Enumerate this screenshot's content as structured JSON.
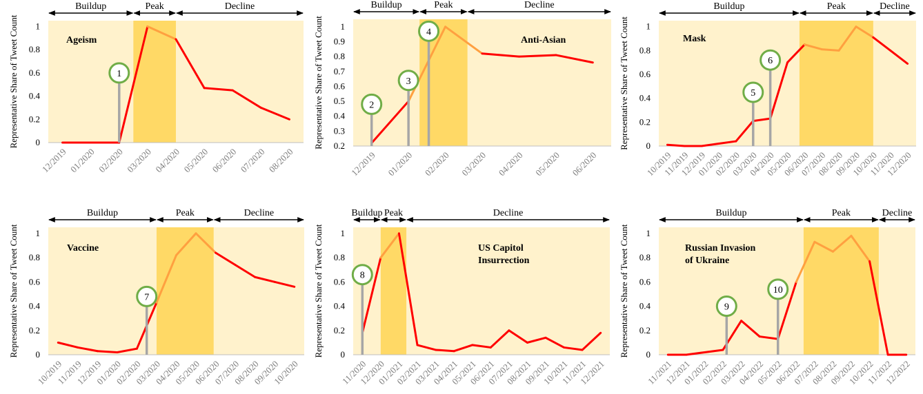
{
  "colors": {
    "plot_bg": "#fff2cc",
    "peak_band": "#ffd966",
    "line": "#ff0000",
    "line_in_peak": "#ffa040",
    "marker_ring": "#70ad47",
    "marker_stem": "#a6a6a6",
    "axis": "#bfbfbf",
    "tick_text": "#7f7f7f",
    "text": "#000000"
  },
  "chart_data": [
    {
      "type": "line",
      "title": "Ageism",
      "ylabel": "Representative Share of Tweet Count",
      "categories": [
        "12/2019",
        "01/2020",
        "02/2020",
        "03/2020",
        "04/2020",
        "05/2020",
        "06/2020",
        "07/2020",
        "08/2020"
      ],
      "values": [
        0,
        0,
        0,
        1.0,
        0.89,
        0.47,
        0.45,
        0.3,
        0.2
      ],
      "ylim": [
        0,
        1.05
      ],
      "yticks": [
        0,
        0.2,
        0.4,
        0.6,
        0.8,
        1
      ],
      "ytick_labels": [
        "0",
        "0.2",
        "0.4",
        "0.6",
        "0.8",
        "1"
      ],
      "phases": [
        {
          "label": "Buildup",
          "from": -0.5,
          "to": 2.5
        },
        {
          "label": "Peak",
          "from": 2.5,
          "to": 4.0
        },
        {
          "label": "Decline",
          "from": 4.0,
          "to": 8.5
        }
      ],
      "peak_range": [
        2.5,
        4.0
      ],
      "markers": [
        {
          "label": "1",
          "x": 2.0,
          "y": 0.6
        }
      ]
    },
    {
      "type": "line",
      "title": "Anti-Asian",
      "ylabel": "Representative Share of Tweet Count",
      "categories": [
        "12/2019",
        "01/2020",
        "02/2020",
        "03/2020",
        "04/2020",
        "05/2020",
        "06/2020"
      ],
      "values": [
        0.22,
        0.5,
        1.0,
        0.82,
        0.8,
        0.81,
        0.76
      ],
      "ylim": [
        0.2,
        1.05
      ],
      "yticks": [
        0.2,
        0.3,
        0.4,
        0.5,
        0.6,
        0.7,
        0.8,
        0.9,
        1
      ],
      "ytick_labels": [
        "0.2",
        "0.3",
        "0.4",
        "0.5",
        "0.6",
        "0.7",
        "0.8",
        "0.9",
        "1"
      ],
      "phases": [
        {
          "label": "Buildup",
          "from": -0.5,
          "to": 1.3
        },
        {
          "label": "Peak",
          "from": 1.3,
          "to": 2.6
        },
        {
          "label": "Decline",
          "from": 2.6,
          "to": 6.5
        }
      ],
      "peak_range": [
        1.3,
        2.6
      ],
      "markers": [
        {
          "label": "2",
          "x": 0.0,
          "y": 0.48
        },
        {
          "label": "3",
          "x": 1.0,
          "y": 0.64
        },
        {
          "label": "4",
          "x": 1.55,
          "y": 0.97
        }
      ]
    },
    {
      "type": "line",
      "title": "Mask",
      "ylabel": "Representative Share of Tweet Count",
      "categories": [
        "10/2019",
        "11/2019",
        "12/2019",
        "01/2020",
        "02/2020",
        "03/2020",
        "04/2020",
        "05/2020",
        "06/2020",
        "07/2020",
        "08/2020",
        "09/2020",
        "10/2020",
        "11/2020",
        "12/2020"
      ],
      "values": [
        0.01,
        0,
        0,
        0.02,
        0.04,
        0.21,
        0.23,
        0.7,
        0.85,
        0.81,
        0.8,
        1.0,
        0.91,
        0.8,
        0.69
      ],
      "ylim": [
        0,
        1.05
      ],
      "yticks": [
        0,
        0.2,
        0.4,
        0.6,
        0.8,
        1
      ],
      "ytick_labels": [
        "0",
        "0.2",
        "0.4",
        "0.6",
        "0.8",
        "1"
      ],
      "phases": [
        {
          "label": "Buildup",
          "from": -0.5,
          "to": 7.7
        },
        {
          "label": "Peak",
          "from": 7.7,
          "to": 12.0
        },
        {
          "label": "Decline",
          "from": 12.0,
          "to": 14.5
        }
      ],
      "peak_range": [
        7.7,
        12.0
      ],
      "markers": [
        {
          "label": "5",
          "x": 5.0,
          "y": 0.45
        },
        {
          "label": "6",
          "x": 6.0,
          "y": 0.72
        }
      ]
    },
    {
      "type": "line",
      "title": "Vaccine",
      "ylabel": "Representative Share of Tweet Count",
      "categories": [
        "10/2019",
        "11/2019",
        "12/2019",
        "01/2020",
        "02/2020",
        "03/2020",
        "04/2020",
        "05/2020",
        "06/2020",
        "07/2020",
        "08/2020",
        "09/2020",
        "10/2020"
      ],
      "values": [
        0.1,
        0.06,
        0.03,
        0.02,
        0.05,
        0.43,
        0.82,
        1.0,
        0.84,
        0.74,
        0.64,
        0.6,
        0.56
      ],
      "ylim": [
        0,
        1.05
      ],
      "yticks": [
        0,
        0.2,
        0.4,
        0.6,
        0.8,
        1
      ],
      "ytick_labels": [
        "0",
        "0.2",
        "0.4",
        "0.6",
        "0.8",
        "1"
      ],
      "phases": [
        {
          "label": "Buildup",
          "from": -0.5,
          "to": 5.0
        },
        {
          "label": "Peak",
          "from": 5.0,
          "to": 7.9
        },
        {
          "label": "Decline",
          "from": 7.9,
          "to": 12.5
        }
      ],
      "peak_range": [
        5.0,
        7.9
      ],
      "markers": [
        {
          "label": "7",
          "x": 4.5,
          "y": 0.48
        }
      ]
    },
    {
      "type": "line",
      "title": "US Capitol\nInsurrection",
      "ylabel": "Representative Share of Tweet Count",
      "categories": [
        "11/2020",
        "12/2020",
        "01/2021",
        "02/2021",
        "03/2021",
        "04/2021",
        "05/2021",
        "06/2021",
        "07/2021",
        "08/2021",
        "09/2021",
        "10/2021",
        "11/2021",
        "12/2021"
      ],
      "values": [
        0.18,
        0.8,
        1.0,
        0.08,
        0.04,
        0.03,
        0.08,
        0.06,
        0.2,
        0.1,
        0.14,
        0.06,
        0.04,
        0.18
      ],
      "ylim": [
        0,
        1.05
      ],
      "yticks": [
        0,
        0.2,
        0.4,
        0.6,
        0.8,
        1
      ],
      "ytick_labels": [
        "0",
        "0.2",
        "0.4",
        "0.6",
        "0.8",
        "1"
      ],
      "phases": [
        {
          "label": "Buildup",
          "from": -0.5,
          "to": 1.0
        },
        {
          "label": "Peak",
          "from": 1.0,
          "to": 2.4
        },
        {
          "label": "Decline",
          "from": 2.4,
          "to": 13.5
        }
      ],
      "peak_range": [
        1.0,
        2.4
      ],
      "markers": [
        {
          "label": "8",
          "x": 0.0,
          "y": 0.66
        }
      ]
    },
    {
      "type": "line",
      "title": "Russian Invasion\nof Ukraine",
      "ylabel": "Representative Share of Tweet Count",
      "categories": [
        "11/2021",
        "12/2021",
        "01/2022",
        "02/2022",
        "03/2022",
        "04/2022",
        "05/2022",
        "06/2022",
        "07/2022",
        "08/2022",
        "09/2022",
        "10/2022",
        "11/2022",
        "12/2022"
      ],
      "values": [
        0,
        0,
        0.02,
        0.04,
        0.28,
        0.15,
        0.13,
        0.6,
        0.93,
        0.85,
        0.98,
        0.77,
        0,
        0
      ],
      "ylim": [
        0,
        1.05
      ],
      "yticks": [
        0,
        0.2,
        0.4,
        0.6,
        0.8,
        1
      ],
      "ytick_labels": [
        "0",
        "0.2",
        "0.4",
        "0.6",
        "0.8",
        "1"
      ],
      "phases": [
        {
          "label": "Buildup",
          "from": -0.5,
          "to": 7.4
        },
        {
          "label": "Peak",
          "from": 7.4,
          "to": 11.5
        },
        {
          "label": "Decline",
          "from": 11.5,
          "to": 13.5
        }
      ],
      "peak_range": [
        7.4,
        11.5
      ],
      "markers": [
        {
          "label": "9",
          "x": 3.2,
          "y": 0.4
        },
        {
          "label": "10",
          "x": 6.0,
          "y": 0.54
        }
      ]
    }
  ]
}
